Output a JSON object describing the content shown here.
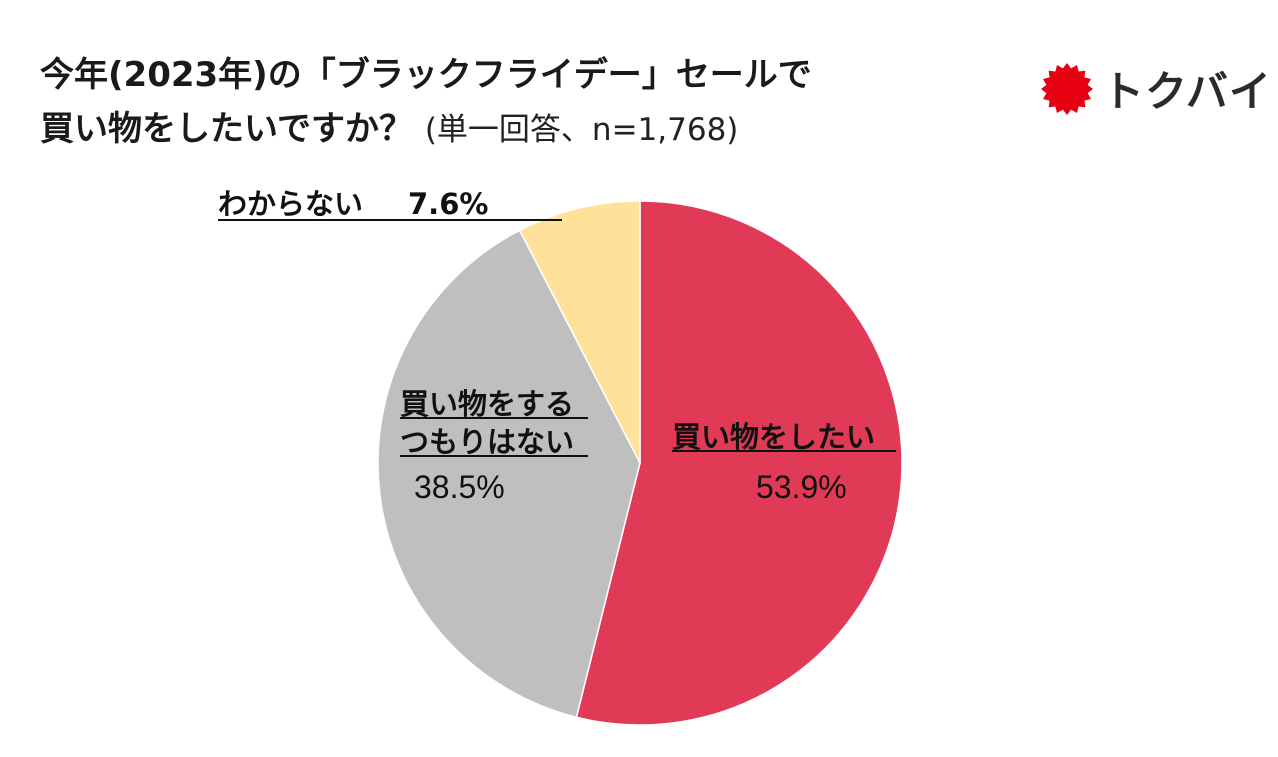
{
  "header": {
    "title_line1": "今年(2023年)の「ブラックフライデー」セールで",
    "title_line2": "買い物をしたいですか？",
    "subtitle": "(単一回答、n=1,768)"
  },
  "logo": {
    "text": "トクバイ",
    "icon": "red-starburst-icon",
    "color": "#e60012"
  },
  "chart_data": {
    "type": "pie",
    "title": "今年(2023年)の「ブラックフライデー」セールで買い物をしたいですか？",
    "subtitle": "(単一回答、n=1,768)",
    "slices": [
      {
        "name": "買い物をしたい",
        "value": 53.9,
        "label": "53.9%",
        "color": "#e03a56"
      },
      {
        "name": "買い物をするつもりはない",
        "name_lines": [
          "買い物をする",
          "つもりはない"
        ],
        "value": 38.5,
        "label": "38.5%",
        "color": "#bfbfbf"
      },
      {
        "name": "わからない",
        "value": 7.6,
        "label": "7.6%",
        "color": "#ffe299"
      }
    ]
  }
}
